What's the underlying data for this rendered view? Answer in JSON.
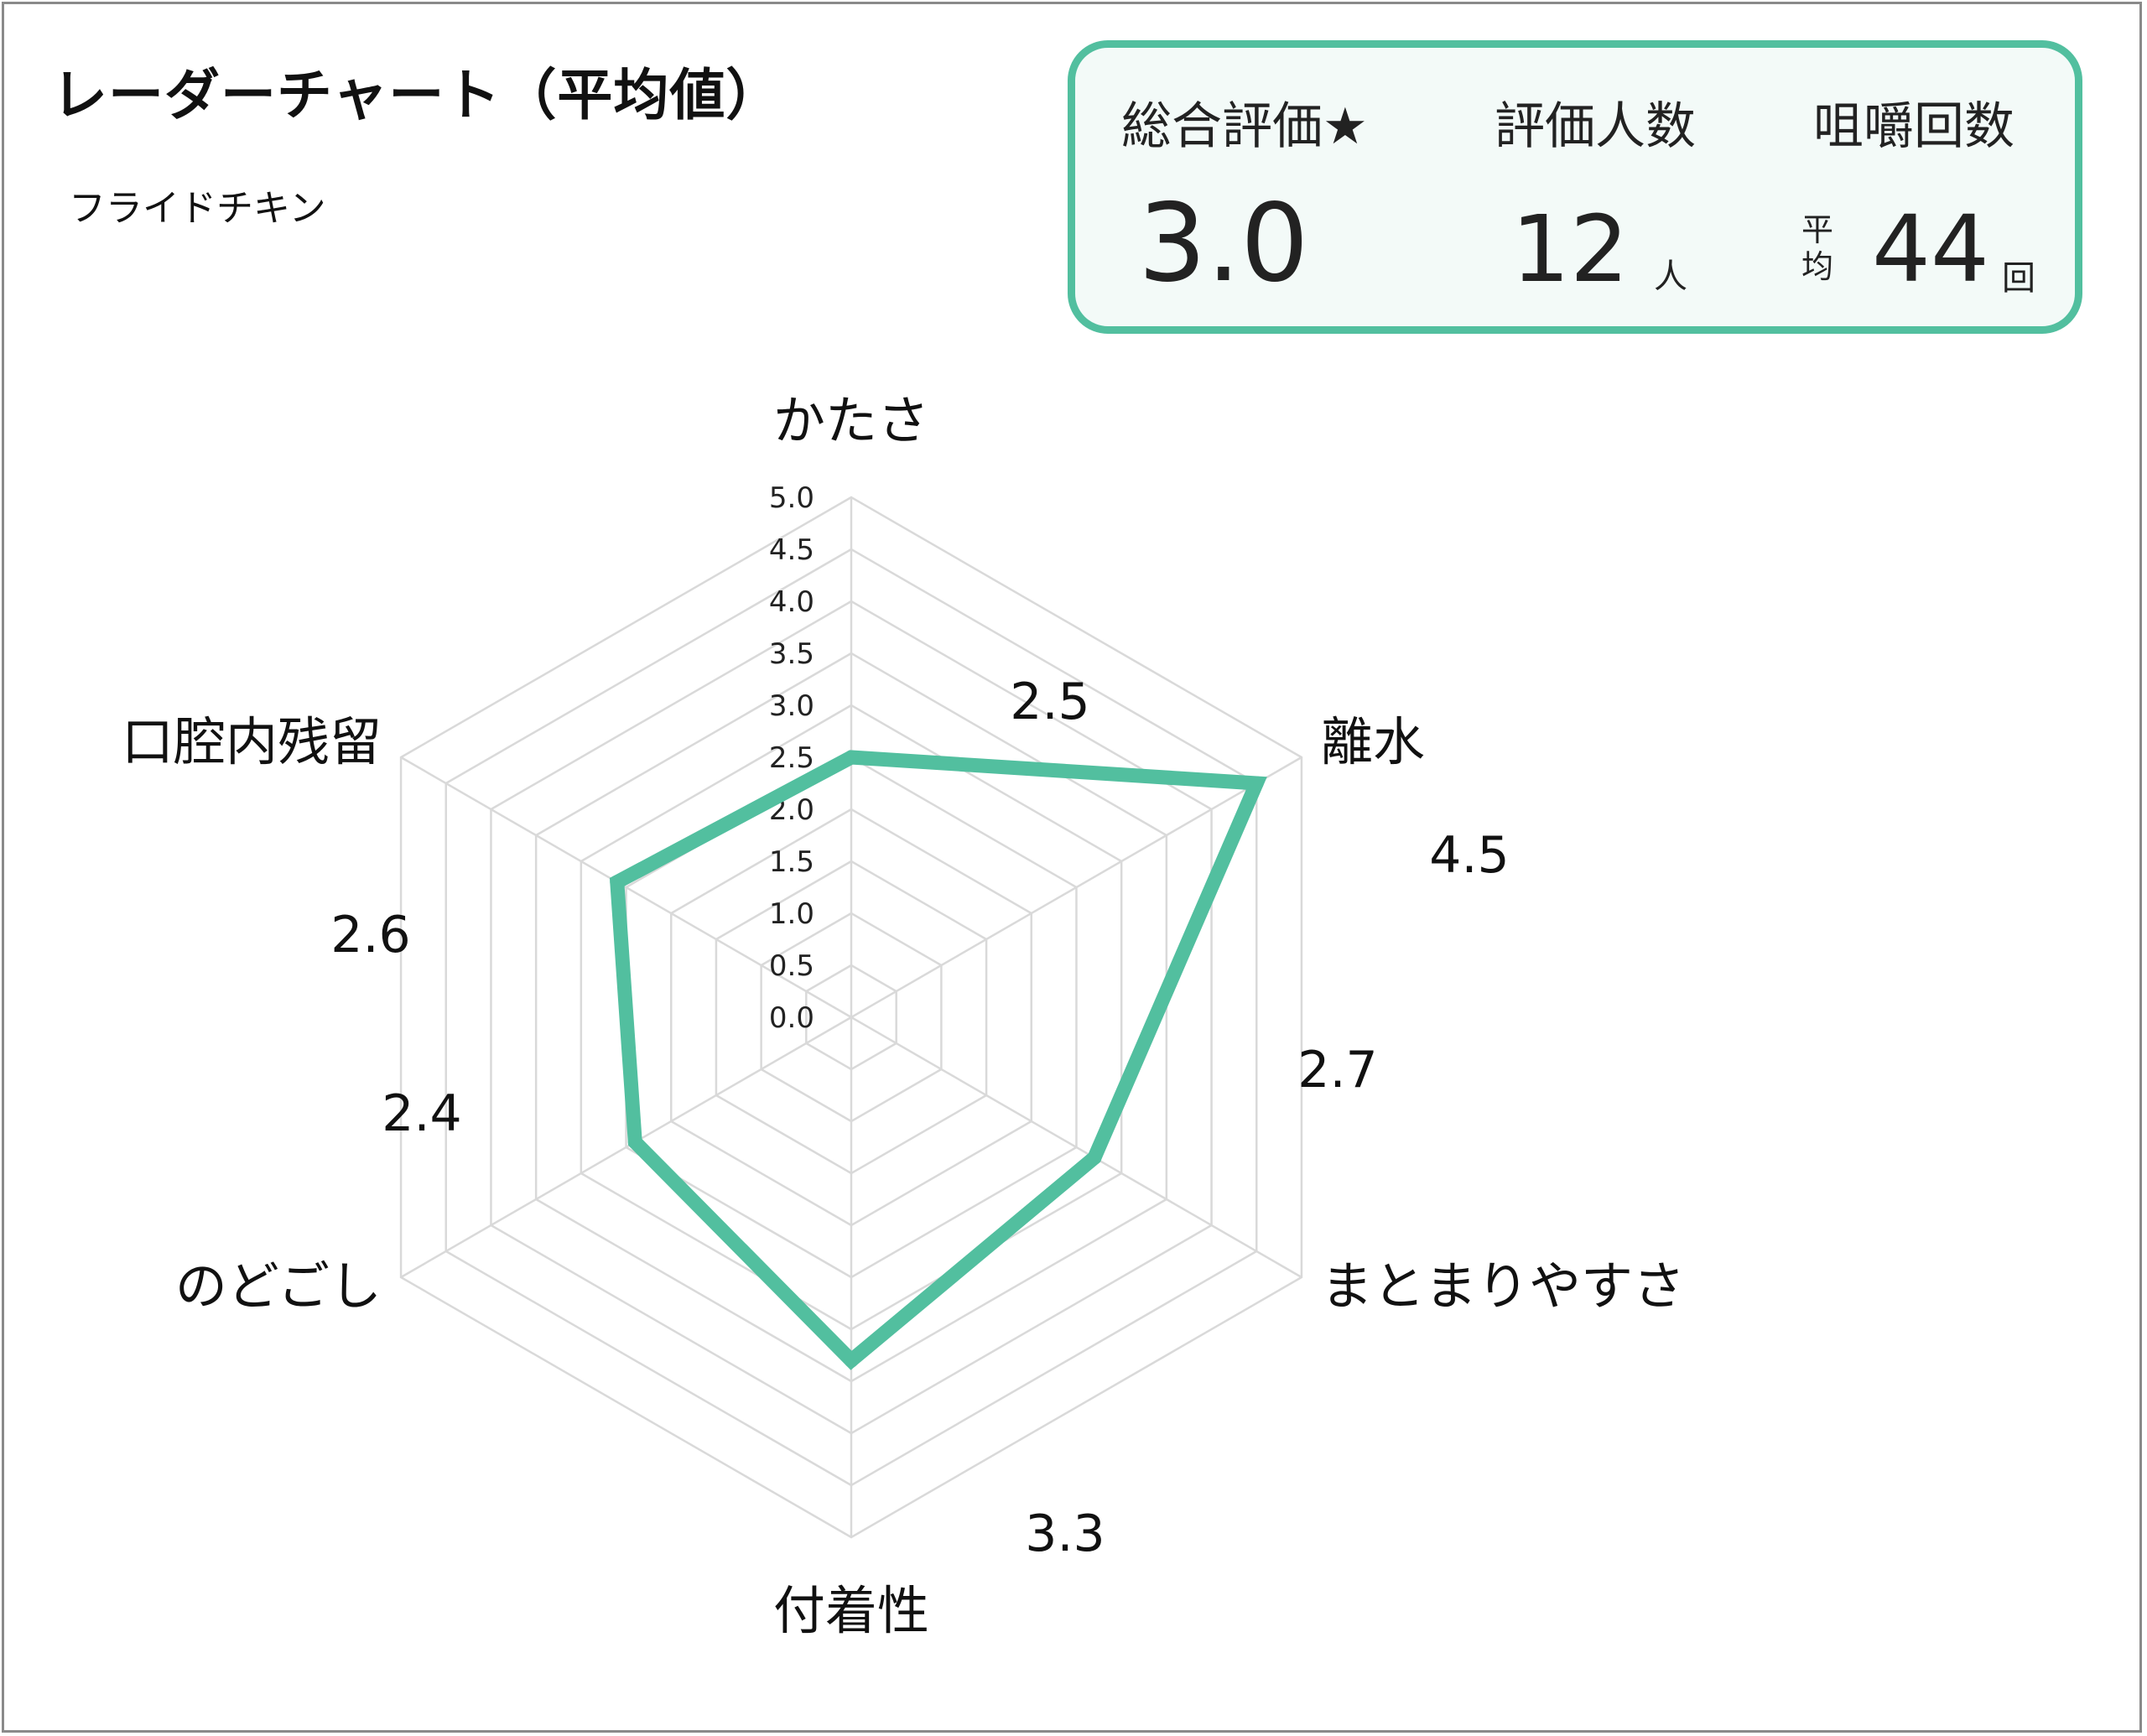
{
  "title": "レーダーチャート（平均値）",
  "subtitle": "フライドチキン",
  "summary": {
    "overall_label": "総合評価★",
    "overall_value": "3.0",
    "people_label": "評価人数",
    "people_value": "12",
    "people_unit": "人",
    "chew_label": "咀嚼回数",
    "chew_prefix": "平均",
    "chew_value": "44",
    "chew_unit": "回"
  },
  "colors": {
    "accent": "#52bf9f",
    "grid": "#d9d9d9"
  },
  "chart_data": {
    "type": "radar",
    "categories": [
      "かたさ",
      "離水",
      "まとまりやすさ",
      "付着性",
      "のどごし",
      "口腔内残留"
    ],
    "series": [
      {
        "values": [
          2.5,
          4.5,
          2.7,
          3.3,
          2.4,
          2.6
        ]
      }
    ],
    "value_labels": [
      "2.5",
      "4.5",
      "2.7",
      "3.3",
      "2.4",
      "2.6"
    ],
    "rlim": [
      0,
      5
    ],
    "ticks": [
      0.0,
      0.5,
      1.0,
      1.5,
      2.0,
      2.5,
      3.0,
      3.5,
      4.0,
      4.5,
      5.0
    ],
    "tick_labels": [
      "0.0",
      "0.5",
      "1.0",
      "1.5",
      "2.0",
      "2.5",
      "3.0",
      "3.5",
      "4.0",
      "4.5",
      "5.0"
    ],
    "grid": true,
    "legend": "none"
  }
}
